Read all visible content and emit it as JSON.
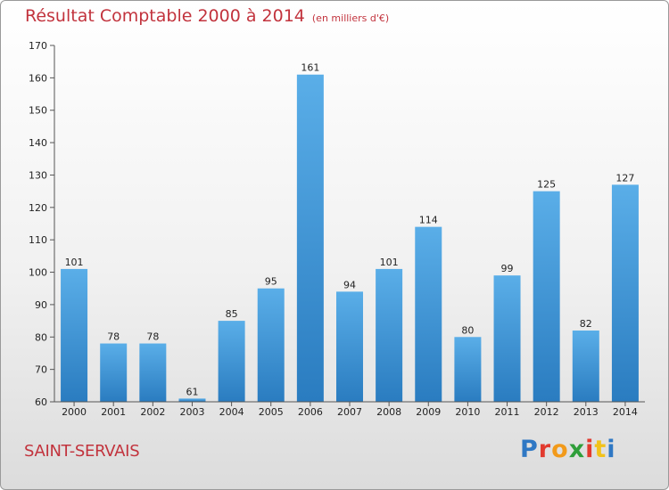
{
  "header": {
    "title": "Résultat Comptable 2000 à 2014",
    "subtitle": "(en milliers d'€)"
  },
  "footer": {
    "place": "SAINT-SERVAIS",
    "logo": {
      "text": "Proxiti",
      "letter_colors": [
        "#2f78c4",
        "#e23a2e",
        "#f29a1a",
        "#2f9e3a",
        "#e23a2e",
        "#f2c21a",
        "#2f78c4"
      ]
    }
  },
  "colors": {
    "bar_light": "#5aaee8",
    "bar_dark": "#2a7cc0",
    "axis": "#555555"
  },
  "chart_data": {
    "type": "bar",
    "title": "Résultat Comptable 2000 à 2014",
    "categories": [
      "2000",
      "2001",
      "2002",
      "2003",
      "2004",
      "2005",
      "2006",
      "2007",
      "2008",
      "2009",
      "2010",
      "2011",
      "2012",
      "2013",
      "2014"
    ],
    "values": [
      101,
      78,
      78,
      61,
      85,
      95,
      161,
      94,
      101,
      114,
      80,
      99,
      125,
      82,
      127
    ],
    "ylim": [
      60,
      170
    ],
    "yticks": [
      60,
      70,
      80,
      90,
      100,
      110,
      120,
      130,
      140,
      150,
      160,
      170
    ],
    "grid": false,
    "legend": "none",
    "xlabel": "",
    "ylabel": ""
  }
}
